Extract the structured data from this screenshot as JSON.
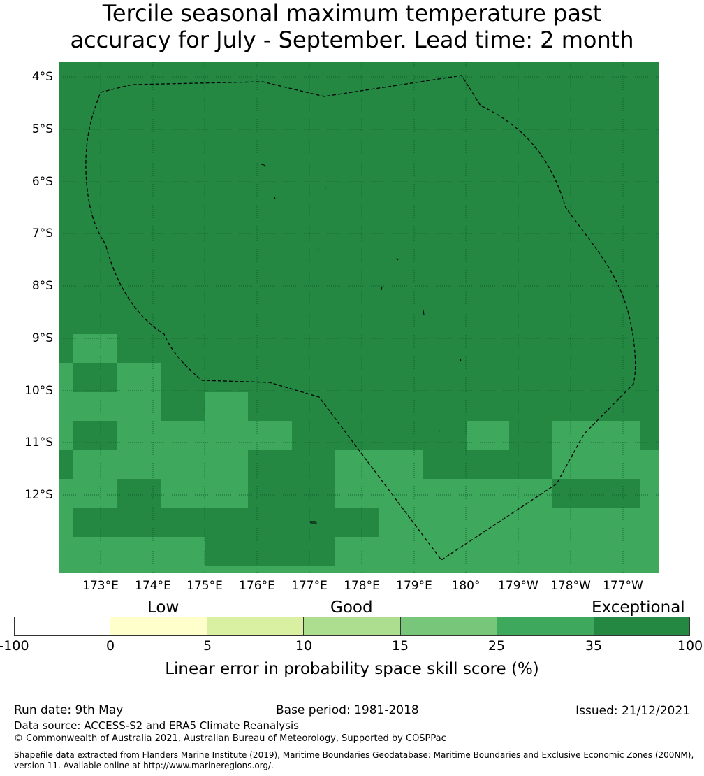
{
  "title": {
    "line1": "Tercile seasonal maximum temperature past",
    "line2": "accuracy for July - September. Lead time: 2 month"
  },
  "map": {
    "lat_labels": [
      "4°S",
      "5°S",
      "6°S",
      "7°S",
      "8°S",
      "9°S",
      "10°S",
      "11°S",
      "12°S"
    ],
    "lon_labels": [
      "173°E",
      "174°E",
      "175°E",
      "176°E",
      "177°E",
      "178°E",
      "179°E",
      "180°",
      "179°W",
      "178°W",
      "177°W"
    ],
    "colors": {
      "exceptional": "#248843",
      "band_25_35": "#3ea85c",
      "grid": "#0c5a28",
      "boundary": "#000000"
    }
  },
  "categories": {
    "low": "Low",
    "good": "Good",
    "exceptional": "Exceptional"
  },
  "colorbar": {
    "ticks": [
      "-100",
      "0",
      "5",
      "10",
      "15",
      "25",
      "35",
      "100"
    ],
    "colors": [
      "#ffffff",
      "#ffffcc",
      "#d9f0a3",
      "#addd8e",
      "#78c679",
      "#3ea85c",
      "#248843"
    ],
    "title": "Linear error in probability space skill score (%)"
  },
  "footer": {
    "run_date": "Run date: 9th May",
    "base_period": "Base period: 1981-2018",
    "issued": "Issued: 21/12/2021",
    "data_source": "Data source: ACCESS-S2 and ERA5 Climate Reanalysis",
    "copyright": "© Commonwealth of Australia 2021, Australian Bureau of Meteorology, Supported by COSPPac",
    "shapefile_line1": "Shapefile data extracted from Flanders Marine Institute (2019), Maritime Boundaries Geodatabase: Maritime Boundaries and Exclusive Economic Zones (200NM),",
    "shapefile_line2": "version 11. Available online at http://www.marineregions.org/."
  }
}
